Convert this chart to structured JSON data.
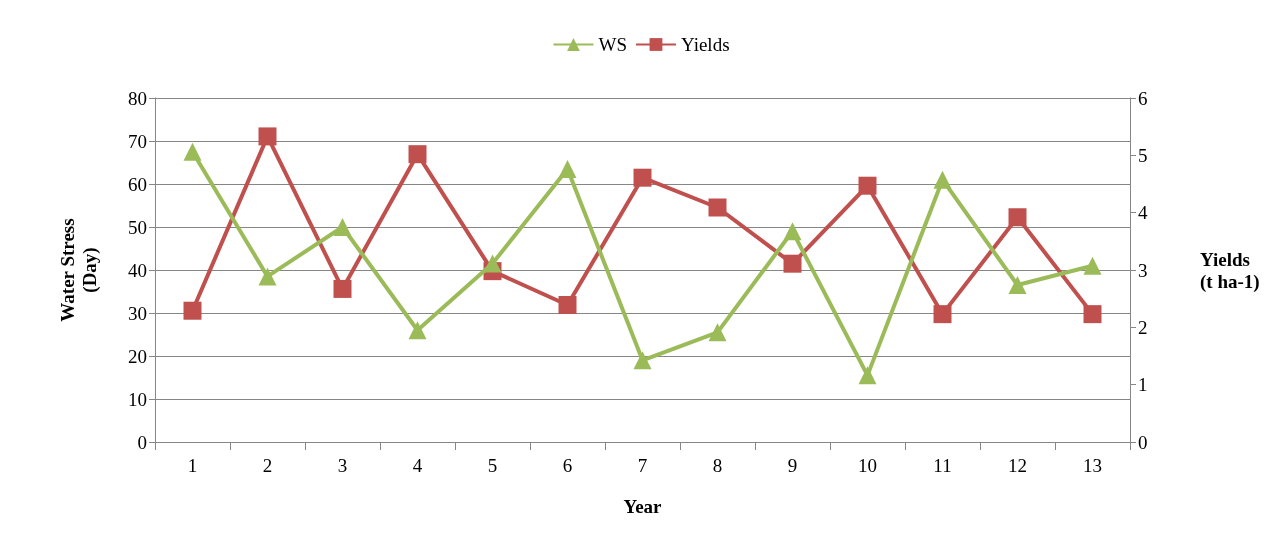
{
  "chart_data": {
    "type": "line",
    "xlabel": "Year",
    "ylabel": "Water Stress\n(Day)",
    "y2label": "Yields\n(t ha-1)",
    "categories": [
      "1",
      "2",
      "3",
      "4",
      "5",
      "6",
      "7",
      "8",
      "9",
      "10",
      "11",
      "12",
      "13"
    ],
    "series": [
      {
        "name": "WS",
        "color": "#9bbb59",
        "marker": "triangle",
        "values": [
          67.5,
          38.5,
          50,
          26,
          41.5,
          63.5,
          19,
          25.5,
          49,
          15.5,
          61,
          36.5,
          41
        ]
      },
      {
        "name": "Yields",
        "color": "#c0504d",
        "marker": "square",
        "axis": "y2",
        "values": [
          2.29,
          5.33,
          2.67,
          5.02,
          2.98,
          2.39,
          4.61,
          4.09,
          3.11,
          4.47,
          2.23,
          3.92,
          2.23
        ]
      }
    ],
    "ylim": [
      0,
      80
    ],
    "yticks": [
      0,
      10,
      20,
      30,
      40,
      50,
      60,
      70,
      80
    ],
    "y2lim": [
      0,
      6
    ],
    "y2ticks": [
      0,
      1,
      2,
      3,
      4,
      5,
      6
    ],
    "grid": "y",
    "legend": "top",
    "line_style": "solid"
  }
}
